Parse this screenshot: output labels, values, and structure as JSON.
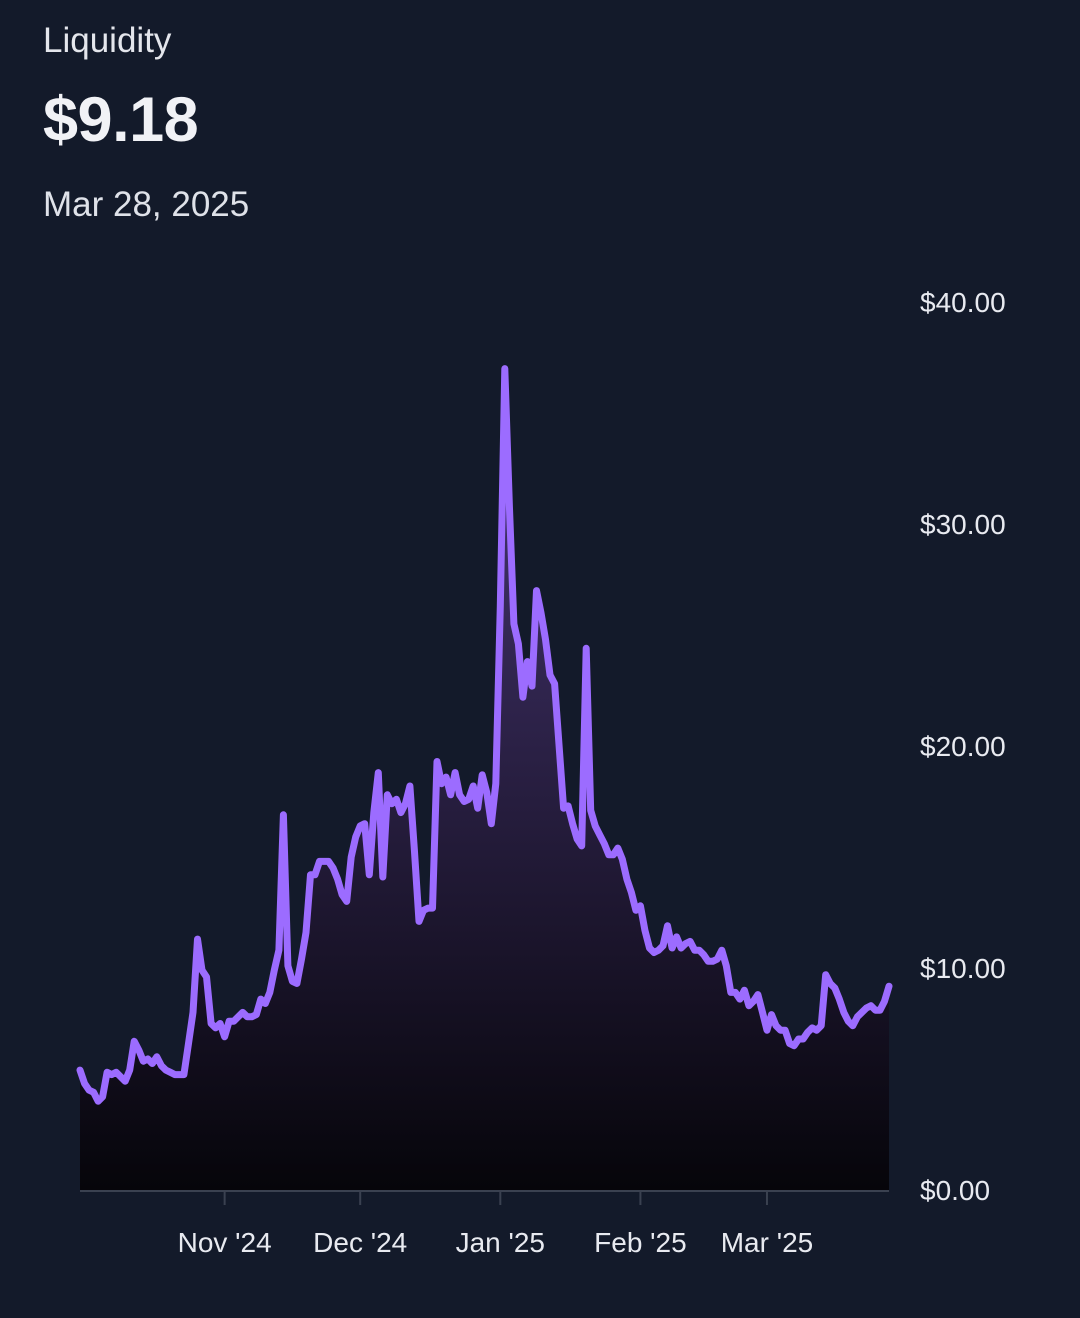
{
  "header": {
    "label": "Liquidity",
    "value": "$9.18",
    "date": "Mar 28, 2025"
  },
  "colors": {
    "background": "#131a2a",
    "line": "#9c6cff",
    "fill_top": "#4a3878",
    "fill_bottom": "#06050a",
    "axis": "#3a4150"
  },
  "chart_data": {
    "type": "area",
    "title": "",
    "xlabel": "",
    "ylabel": "",
    "ylim": [
      0,
      40
    ],
    "y_ticks": [
      {
        "value": 0,
        "label": "$0.00"
      },
      {
        "value": 10,
        "label": "$10.00"
      },
      {
        "value": 20,
        "label": "$20.00"
      },
      {
        "value": 30,
        "label": "$30.00"
      },
      {
        "value": 40,
        "label": "$40.00"
      }
    ],
    "x_range": [
      "2024-09-30",
      "2025-03-28"
    ],
    "x_ticks": [
      {
        "date": "2024-11-01",
        "label": "Nov '24"
      },
      {
        "date": "2024-12-01",
        "label": "Dec '24"
      },
      {
        "date": "2025-01-01",
        "label": "Jan '25"
      },
      {
        "date": "2025-02-01",
        "label": "Feb '25"
      },
      {
        "date": "2025-03-01",
        "label": "Mar '25"
      }
    ],
    "grid": false,
    "y_axis_position": "right",
    "series": [
      {
        "values": [
          [
            "2024-09-30",
            5.4
          ],
          [
            "2024-10-01",
            4.8
          ],
          [
            "2024-10-02",
            4.5
          ],
          [
            "2024-10-03",
            4.4
          ],
          [
            "2024-10-04",
            4.0
          ],
          [
            "2024-10-05",
            4.2
          ],
          [
            "2024-10-06",
            5.3
          ],
          [
            "2024-10-07",
            5.2
          ],
          [
            "2024-10-08",
            5.3
          ],
          [
            "2024-10-09",
            5.1
          ],
          [
            "2024-10-10",
            4.9
          ],
          [
            "2024-10-11",
            5.4
          ],
          [
            "2024-10-12",
            6.7
          ],
          [
            "2024-10-13",
            6.3
          ],
          [
            "2024-10-14",
            5.8
          ],
          [
            "2024-10-15",
            5.9
          ],
          [
            "2024-10-16",
            5.7
          ],
          [
            "2024-10-17",
            6.0
          ],
          [
            "2024-10-18",
            5.6
          ],
          [
            "2024-10-19",
            5.4
          ],
          [
            "2024-10-20",
            5.3
          ],
          [
            "2024-10-21",
            5.2
          ],
          [
            "2024-10-22",
            5.2
          ],
          [
            "2024-10-23",
            5.2
          ],
          [
            "2024-10-24",
            6.6
          ],
          [
            "2024-10-25",
            8.0
          ],
          [
            "2024-10-26",
            11.3
          ],
          [
            "2024-10-27",
            9.9
          ],
          [
            "2024-10-28",
            9.6
          ],
          [
            "2024-10-29",
            7.5
          ],
          [
            "2024-10-30",
            7.3
          ],
          [
            "2024-10-31",
            7.5
          ],
          [
            "2024-11-01",
            6.9
          ],
          [
            "2024-11-02",
            7.6
          ],
          [
            "2024-11-03",
            7.6
          ],
          [
            "2024-11-04",
            7.8
          ],
          [
            "2024-11-05",
            8.0
          ],
          [
            "2024-11-06",
            7.8
          ],
          [
            "2024-11-07",
            7.8
          ],
          [
            "2024-11-08",
            7.9
          ],
          [
            "2024-11-09",
            8.6
          ],
          [
            "2024-11-10",
            8.4
          ],
          [
            "2024-11-11",
            8.9
          ],
          [
            "2024-11-12",
            9.9
          ],
          [
            "2024-11-13",
            10.8
          ],
          [
            "2024-11-14",
            16.9
          ],
          [
            "2024-11-15",
            10.1
          ],
          [
            "2024-11-16",
            9.4
          ],
          [
            "2024-11-17",
            9.3
          ],
          [
            "2024-11-18",
            10.4
          ],
          [
            "2024-11-19",
            11.6
          ],
          [
            "2024-11-20",
            14.2
          ],
          [
            "2024-11-21",
            14.2
          ],
          [
            "2024-11-22",
            14.8
          ],
          [
            "2024-11-23",
            14.8
          ],
          [
            "2024-11-24",
            14.8
          ],
          [
            "2024-11-25",
            14.5
          ],
          [
            "2024-11-26",
            14.0
          ],
          [
            "2024-11-27",
            13.3
          ],
          [
            "2024-11-28",
            13.0
          ],
          [
            "2024-11-29",
            15.0
          ],
          [
            "2024-11-30",
            15.9
          ],
          [
            "2024-12-01",
            16.4
          ],
          [
            "2024-12-02",
            16.5
          ],
          [
            "2024-12-03",
            14.2
          ],
          [
            "2024-12-04",
            17.0
          ],
          [
            "2024-12-05",
            18.8
          ],
          [
            "2024-12-06",
            14.1
          ],
          [
            "2024-12-07",
            17.8
          ],
          [
            "2024-12-08",
            17.4
          ],
          [
            "2024-12-09",
            17.6
          ],
          [
            "2024-12-10",
            17.0
          ],
          [
            "2024-12-11",
            17.4
          ],
          [
            "2024-12-12",
            18.2
          ],
          [
            "2024-12-13",
            15.3
          ],
          [
            "2024-12-14",
            12.1
          ],
          [
            "2024-12-15",
            12.6
          ],
          [
            "2024-12-16",
            12.7
          ],
          [
            "2024-12-17",
            12.7
          ],
          [
            "2024-12-18",
            19.3
          ],
          [
            "2024-12-19",
            18.3
          ],
          [
            "2024-12-20",
            18.6
          ],
          [
            "2024-12-21",
            17.8
          ],
          [
            "2024-12-22",
            18.8
          ],
          [
            "2024-12-23",
            17.8
          ],
          [
            "2024-12-24",
            17.5
          ],
          [
            "2024-12-25",
            17.6
          ],
          [
            "2024-12-26",
            18.2
          ],
          [
            "2024-12-27",
            17.2
          ],
          [
            "2024-12-28",
            18.7
          ],
          [
            "2024-12-29",
            17.9
          ],
          [
            "2024-12-30",
            16.5
          ],
          [
            "2024-12-31",
            18.3
          ],
          [
            "2025-01-01",
            26.3
          ],
          [
            "2025-01-02",
            37.0
          ],
          [
            "2025-01-03",
            30.8
          ],
          [
            "2025-01-04",
            25.5
          ],
          [
            "2025-01-05",
            24.6
          ],
          [
            "2025-01-06",
            22.2
          ],
          [
            "2025-01-07",
            23.8
          ],
          [
            "2025-01-08",
            22.7
          ],
          [
            "2025-01-09",
            27.0
          ],
          [
            "2025-01-10",
            26.0
          ],
          [
            "2025-01-11",
            24.8
          ],
          [
            "2025-01-12",
            23.2
          ],
          [
            "2025-01-13",
            22.8
          ],
          [
            "2025-01-14",
            20.0
          ],
          [
            "2025-01-15",
            17.2
          ],
          [
            "2025-01-16",
            17.3
          ],
          [
            "2025-01-17",
            16.5
          ],
          [
            "2025-01-18",
            15.8
          ],
          [
            "2025-01-19",
            15.5
          ],
          [
            "2025-01-20",
            24.4
          ],
          [
            "2025-01-21",
            17.1
          ],
          [
            "2025-01-22",
            16.4
          ],
          [
            "2025-01-23",
            16.0
          ],
          [
            "2025-01-24",
            15.6
          ],
          [
            "2025-01-25",
            15.1
          ],
          [
            "2025-01-26",
            15.1
          ],
          [
            "2025-01-27",
            15.4
          ],
          [
            "2025-01-28",
            14.9
          ],
          [
            "2025-01-29",
            14.0
          ],
          [
            "2025-01-30",
            13.4
          ],
          [
            "2025-01-31",
            12.6
          ],
          [
            "2025-02-01",
            12.8
          ],
          [
            "2025-02-02",
            11.7
          ],
          [
            "2025-02-03",
            10.9
          ],
          [
            "2025-02-04",
            10.7
          ],
          [
            "2025-02-05",
            10.8
          ],
          [
            "2025-02-06",
            11.0
          ],
          [
            "2025-02-07",
            11.9
          ],
          [
            "2025-02-08",
            10.9
          ],
          [
            "2025-02-09",
            11.4
          ],
          [
            "2025-02-10",
            10.9
          ],
          [
            "2025-02-11",
            11.1
          ],
          [
            "2025-02-12",
            11.2
          ],
          [
            "2025-02-13",
            10.8
          ],
          [
            "2025-02-14",
            10.8
          ],
          [
            "2025-02-15",
            10.6
          ],
          [
            "2025-02-16",
            10.3
          ],
          [
            "2025-02-17",
            10.3
          ],
          [
            "2025-02-18",
            10.4
          ],
          [
            "2025-02-19",
            10.8
          ],
          [
            "2025-02-20",
            10.1
          ],
          [
            "2025-02-21",
            8.9
          ],
          [
            "2025-02-22",
            8.9
          ],
          [
            "2025-02-23",
            8.6
          ],
          [
            "2025-02-24",
            9.0
          ],
          [
            "2025-02-25",
            8.3
          ],
          [
            "2025-02-26",
            8.5
          ],
          [
            "2025-02-27",
            8.8
          ],
          [
            "2025-02-28",
            8.0
          ],
          [
            "2025-03-01",
            7.2
          ],
          [
            "2025-03-02",
            7.9
          ],
          [
            "2025-03-03",
            7.4
          ],
          [
            "2025-03-04",
            7.2
          ],
          [
            "2025-03-05",
            7.2
          ],
          [
            "2025-03-06",
            6.6
          ],
          [
            "2025-03-07",
            6.5
          ],
          [
            "2025-03-08",
            6.8
          ],
          [
            "2025-03-09",
            6.8
          ],
          [
            "2025-03-10",
            7.1
          ],
          [
            "2025-03-11",
            7.3
          ],
          [
            "2025-03-12",
            7.2
          ],
          [
            "2025-03-13",
            7.4
          ],
          [
            "2025-03-14",
            9.7
          ],
          [
            "2025-03-15",
            9.3
          ],
          [
            "2025-03-16",
            9.1
          ],
          [
            "2025-03-17",
            8.6
          ],
          [
            "2025-03-18",
            8.0
          ],
          [
            "2025-03-19",
            7.6
          ],
          [
            "2025-03-20",
            7.4
          ],
          [
            "2025-03-21",
            7.8
          ],
          [
            "2025-03-22",
            8.0
          ],
          [
            "2025-03-23",
            8.2
          ],
          [
            "2025-03-24",
            8.3
          ],
          [
            "2025-03-25",
            8.1
          ],
          [
            "2025-03-26",
            8.1
          ],
          [
            "2025-03-27",
            8.5
          ],
          [
            "2025-03-28",
            9.18
          ]
        ]
      }
    ]
  }
}
